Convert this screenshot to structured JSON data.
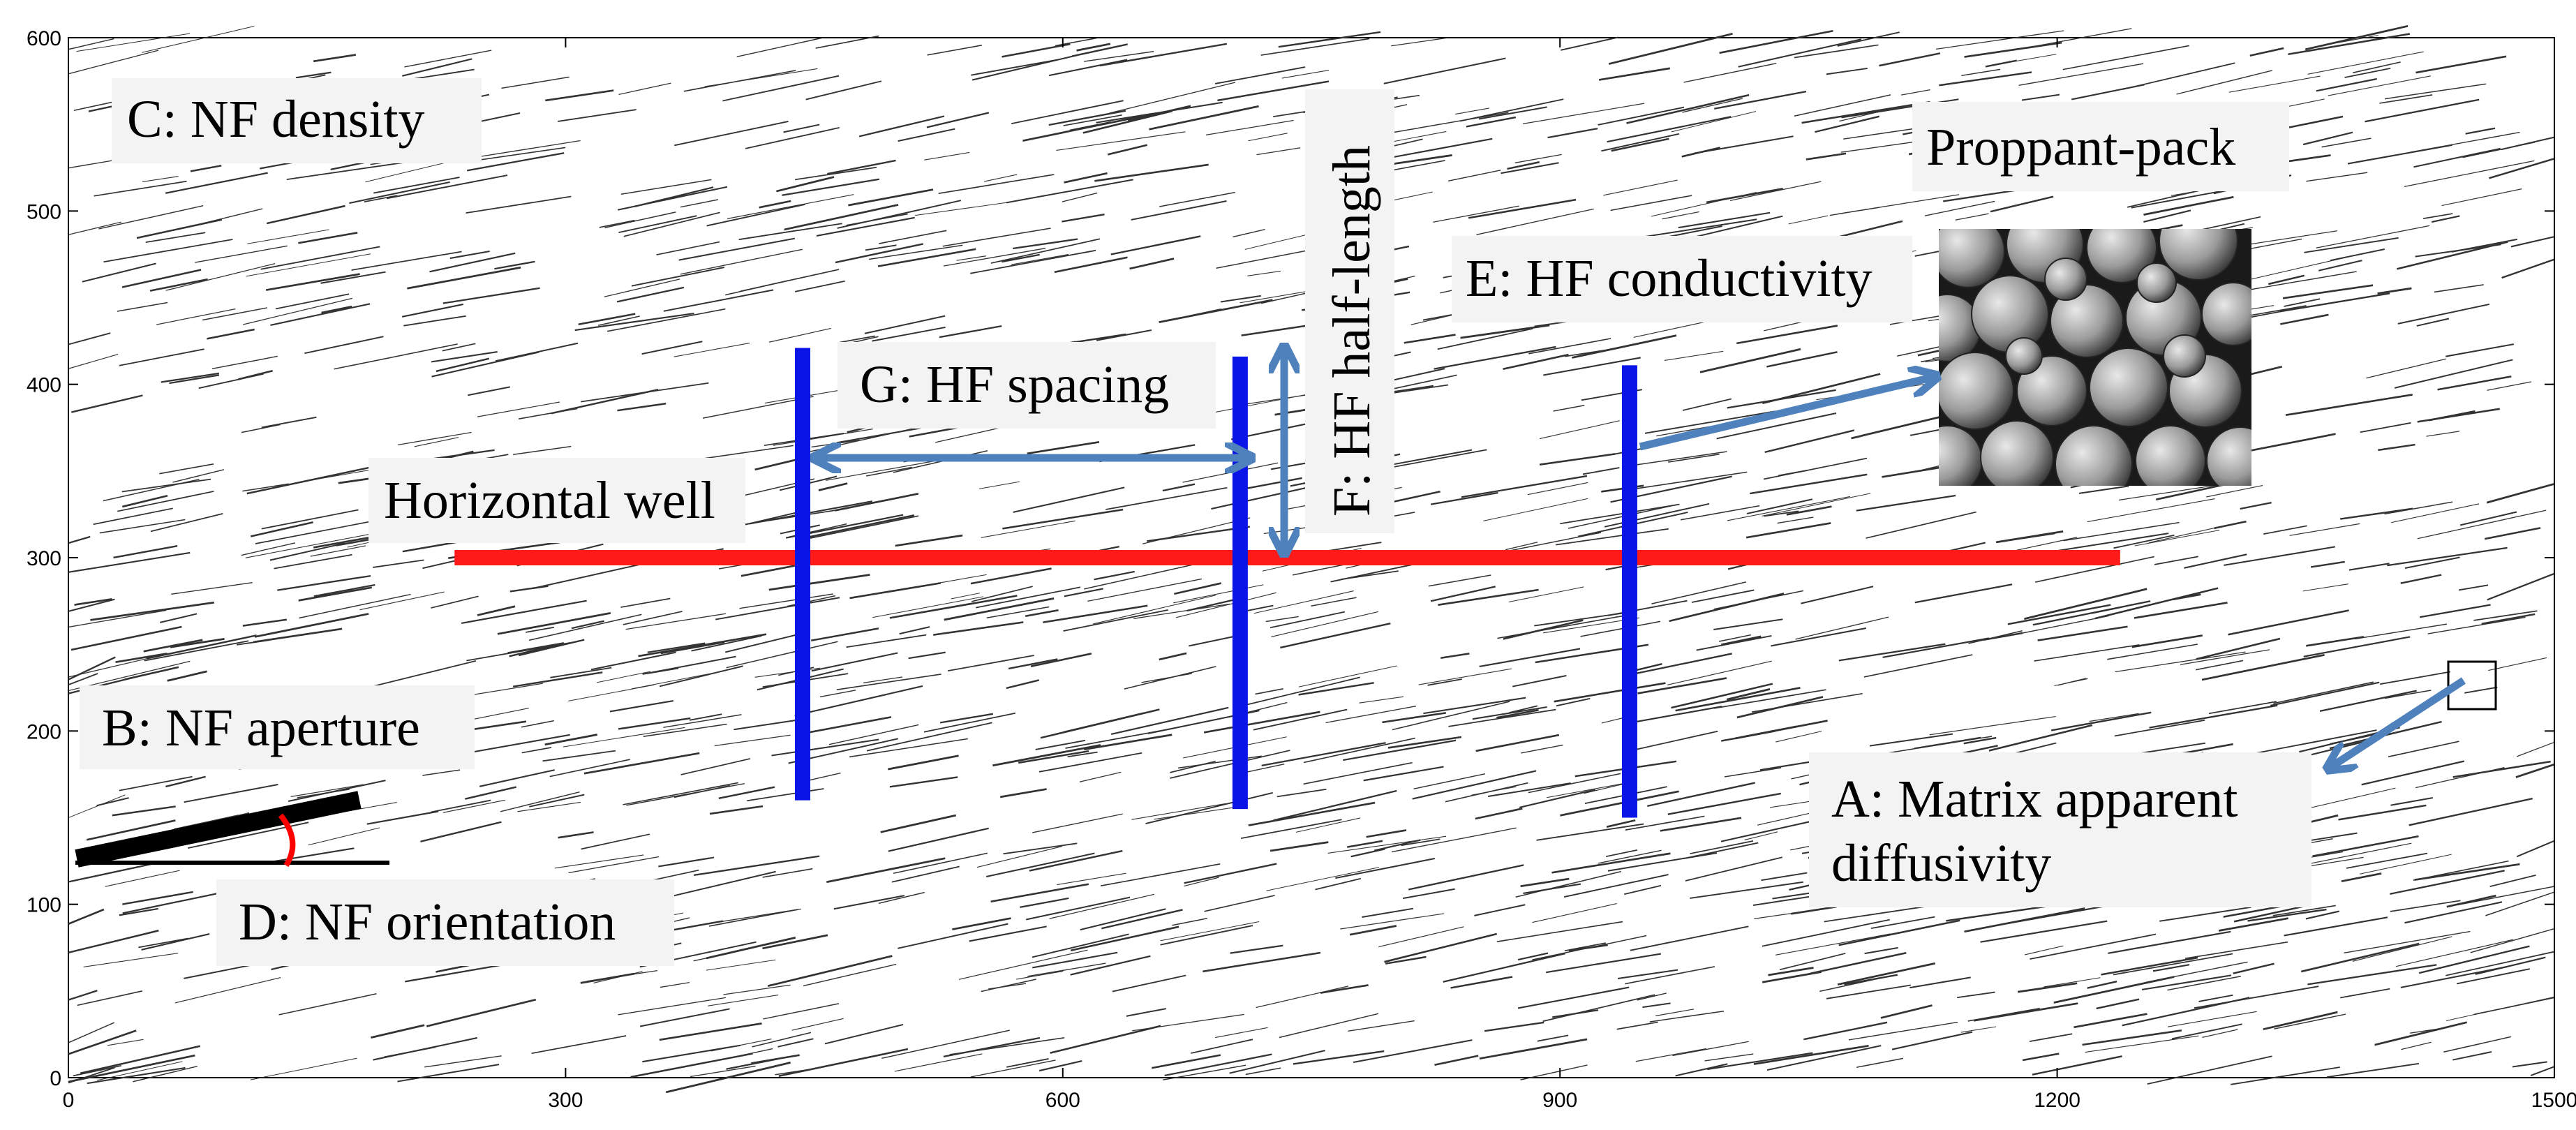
{
  "axes": {
    "x_ticks": [
      "0",
      "300",
      "600",
      "900",
      "1200",
      "1500"
    ],
    "y_ticks": [
      "0",
      "100",
      "200",
      "300",
      "400",
      "500",
      "600"
    ],
    "xlim": [
      0,
      1500
    ],
    "ylim": [
      0,
      600
    ]
  },
  "annotations": {
    "nf_density": "C: NF density",
    "proppant_pack": "Proppant-pack",
    "hf_half_length": "F: HF half-length",
    "hf_conductivity": "E: HF conductivity",
    "hf_spacing": "G: HF spacing",
    "horizontal_well": "Horizontal well",
    "nf_aperture": "B: NF aperture",
    "nf_orientation": "D: NF orientation",
    "matrix_diffusivity_line1": "A: Matrix apparent",
    "matrix_diffusivity_line2": "diffusivity"
  },
  "colors": {
    "well": "#ff1a1a",
    "fracture": "#0a14e6",
    "arrow": "#4f81bd",
    "angle_arc": "#ff0000",
    "natural_fracture": "#333333"
  },
  "well": {
    "x_start": 233,
    "x_end": 1238,
    "y": 300
  },
  "hydraulic_fractures": [
    {
      "x": 443,
      "y_bottom": 160,
      "y_top": 421
    },
    {
      "x": 707,
      "y_bottom": 155,
      "y_top": 416
    },
    {
      "x": 942,
      "y_bottom": 150,
      "y_top": 411
    }
  ]
}
